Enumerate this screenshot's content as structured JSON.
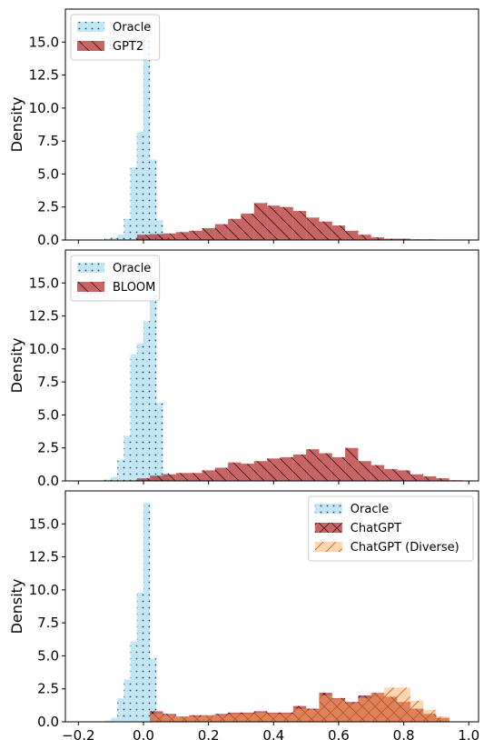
{
  "chart_data": [
    {
      "type": "histogram",
      "panel": 1,
      "ylabel": "Density",
      "xlim": [
        -0.24,
        1.03
      ],
      "ylim": [
        0,
        17.5
      ],
      "yticks": [
        "0.0",
        "2.5",
        "5.0",
        "7.5",
        "10.0",
        "12.5",
        "15.0"
      ],
      "xticks": [],
      "legend_position": "upper-left",
      "series": [
        {
          "name": "Oracle",
          "color": "#87ceeb",
          "hatch": "dots",
          "bin_edges": [
            -0.12,
            -0.1,
            -0.08,
            -0.06,
            -0.04,
            -0.02,
            0.0,
            0.02,
            0.04,
            0.06,
            0.08
          ],
          "values": [
            0.1,
            0.2,
            0.4,
            1.6,
            5.5,
            8.2,
            15.5,
            6.1,
            1.5,
            0.2
          ]
        },
        {
          "name": "GPT2",
          "color": "#b22222",
          "hatch": "backslash",
          "bin_edges": [
            -0.02,
            0.02,
            0.06,
            0.1,
            0.14,
            0.18,
            0.22,
            0.26,
            0.3,
            0.34,
            0.38,
            0.42,
            0.46,
            0.5,
            0.54,
            0.58,
            0.62,
            0.66,
            0.7,
            0.74,
            0.78,
            0.82,
            0.86,
            0.9,
            0.94,
            0.98
          ],
          "values": [
            0.4,
            0.45,
            0.5,
            0.6,
            0.7,
            0.9,
            1.2,
            1.6,
            2.0,
            2.8,
            2.6,
            2.5,
            2.2,
            1.7,
            1.4,
            1.1,
            0.7,
            0.4,
            0.2,
            0.1,
            0.1,
            0.05,
            0.05,
            0.03,
            0.02
          ]
        }
      ]
    },
    {
      "type": "histogram",
      "panel": 2,
      "ylabel": "Density",
      "xlim": [
        -0.24,
        1.03
      ],
      "ylim": [
        0,
        17.5
      ],
      "yticks": [
        "0.0",
        "2.5",
        "5.0",
        "7.5",
        "10.0",
        "12.5",
        "15.0"
      ],
      "xticks": [],
      "legend_position": "upper-left",
      "series": [
        {
          "name": "Oracle",
          "color": "#87ceeb",
          "hatch": "dots",
          "bin_edges": [
            -0.12,
            -0.1,
            -0.08,
            -0.06,
            -0.04,
            -0.02,
            0.0,
            0.02,
            0.04,
            0.06,
            0.08
          ],
          "values": [
            0.1,
            0.3,
            1.6,
            3.4,
            9.6,
            10.4,
            12.1,
            14.5,
            5.9,
            0.6
          ]
        },
        {
          "name": "BLOOM",
          "color": "#b22222",
          "hatch": "backslash",
          "bin_edges": [
            -0.02,
            0.02,
            0.06,
            0.1,
            0.14,
            0.18,
            0.22,
            0.26,
            0.3,
            0.34,
            0.38,
            0.42,
            0.46,
            0.5,
            0.54,
            0.58,
            0.62,
            0.66,
            0.7,
            0.74,
            0.78,
            0.82,
            0.86,
            0.9,
            0.94,
            0.98
          ],
          "values": [
            0.2,
            0.4,
            0.5,
            0.6,
            0.6,
            0.8,
            1.0,
            1.4,
            1.3,
            1.5,
            1.7,
            1.8,
            2.0,
            2.4,
            2.1,
            1.8,
            2.5,
            1.5,
            1.2,
            0.9,
            0.8,
            0.5,
            0.35,
            0.2,
            0.05
          ]
        }
      ]
    },
    {
      "type": "histogram",
      "panel": 3,
      "ylabel": "Density",
      "xlim": [
        -0.24,
        1.03
      ],
      "ylim": [
        0,
        17.5
      ],
      "yticks": [
        "0.0",
        "2.5",
        "5.0",
        "7.5",
        "10.0",
        "12.5",
        "15.0"
      ],
      "xticks": [
        "−0.2",
        "0.0",
        "0.2",
        "0.4",
        "0.6",
        "0.8",
        "1.0"
      ],
      "legend_position": "upper-right",
      "series": [
        {
          "name": "Oracle",
          "color": "#87ceeb",
          "hatch": "dots",
          "bin_edges": [
            -0.12,
            -0.1,
            -0.08,
            -0.06,
            -0.04,
            -0.02,
            0.0,
            0.02,
            0.04,
            0.06,
            0.08
          ],
          "values": [
            0.1,
            0.3,
            1.8,
            3.2,
            6.1,
            9.8,
            16.6,
            4.8,
            0.4,
            0.1
          ]
        },
        {
          "name": "ChatGPT",
          "color": "#b22222",
          "hatch": "cross",
          "bin_edges": [
            0.02,
            0.06,
            0.1,
            0.14,
            0.18,
            0.22,
            0.26,
            0.3,
            0.34,
            0.38,
            0.42,
            0.46,
            0.5,
            0.54,
            0.58,
            0.62,
            0.66,
            0.7,
            0.74,
            0.78,
            0.82,
            0.86,
            0.9,
            0.94
          ],
          "values": [
            0.8,
            0.6,
            0.4,
            0.5,
            0.5,
            0.6,
            0.7,
            0.7,
            0.8,
            0.7,
            0.7,
            1.2,
            1.0,
            2.2,
            1.8,
            1.5,
            2.0,
            2.2,
            1.9,
            1.5,
            1.0,
            0.6,
            0.3
          ]
        },
        {
          "name": "ChatGPT (Diverse)",
          "color": "#ffa54f",
          "hatch": "slash",
          "bin_edges": [
            0.02,
            0.06,
            0.1,
            0.14,
            0.18,
            0.22,
            0.26,
            0.3,
            0.34,
            0.38,
            0.42,
            0.46,
            0.5,
            0.54,
            0.58,
            0.62,
            0.66,
            0.7,
            0.74,
            0.78,
            0.82,
            0.86,
            0.9,
            0.94
          ],
          "values": [
            0.6,
            0.5,
            0.4,
            0.4,
            0.5,
            0.5,
            0.6,
            0.6,
            0.7,
            0.6,
            0.6,
            1.0,
            0.9,
            2.0,
            1.7,
            1.4,
            1.8,
            2.2,
            2.6,
            2.6,
            1.6,
            0.9,
            0.4
          ]
        }
      ]
    }
  ]
}
